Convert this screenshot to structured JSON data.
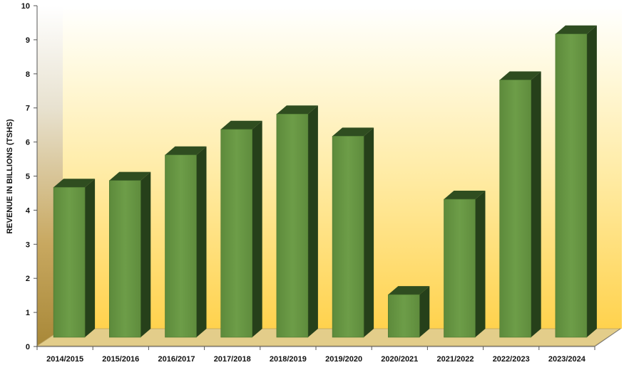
{
  "chart_data": {
    "type": "bar",
    "title": "",
    "xlabel": "",
    "ylabel": "REVENUE IN BILLIONS (TSHS)",
    "ylim": [
      0,
      10
    ],
    "yticks": [
      0,
      1,
      2,
      3,
      4,
      5,
      6,
      7,
      8,
      9,
      10
    ],
    "grid": false,
    "legend": "none",
    "categories": [
      "2014/2015",
      "2015/2016",
      "2016/2017",
      "2017/2018",
      "2018/2019",
      "2019/2020",
      "2020/2021",
      "2021/2022",
      "2022/2023",
      "2023/2024"
    ],
    "values": [
      4.4,
      4.6,
      5.35,
      6.1,
      6.55,
      5.9,
      1.25,
      4.05,
      7.55,
      8.9
    ],
    "colors": {
      "bar_front": "#6a9a45",
      "bar_side": "#26401a",
      "bar_top": "#2f4d20",
      "floor": "#e3cd8a",
      "wall_top": "#fffbe6",
      "wall_bottom": "#ffd24d"
    }
  }
}
